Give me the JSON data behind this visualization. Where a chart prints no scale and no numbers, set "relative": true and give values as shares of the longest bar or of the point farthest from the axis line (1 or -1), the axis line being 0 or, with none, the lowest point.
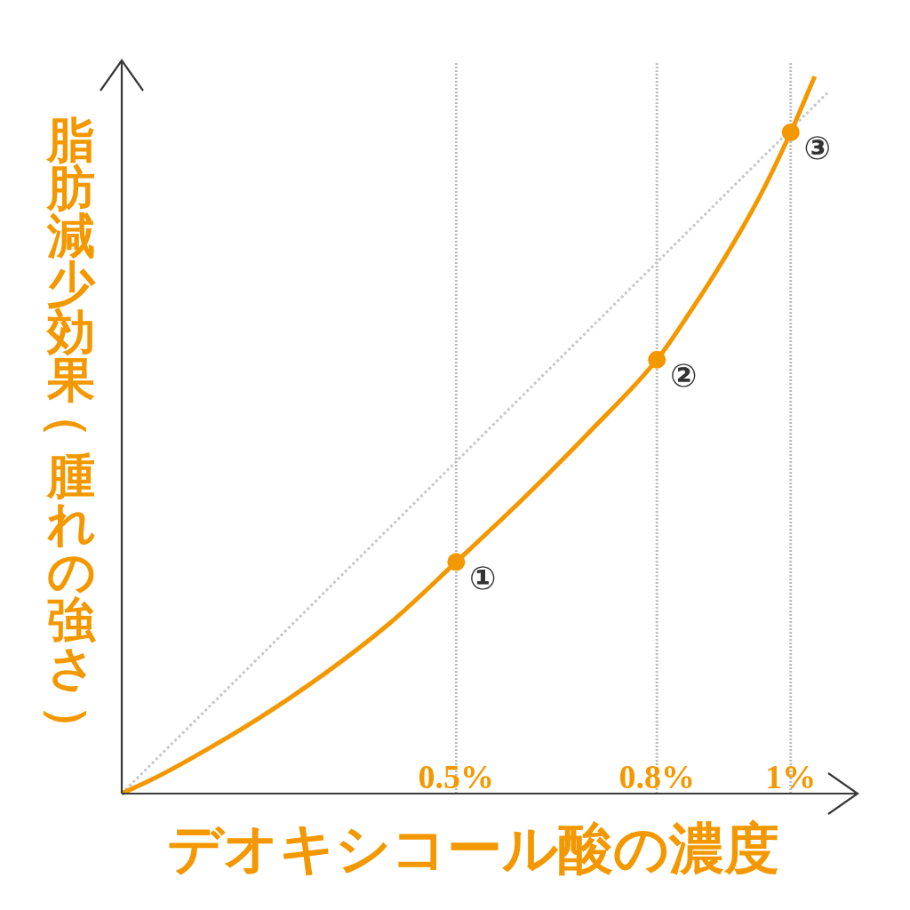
{
  "chart_data": {
    "type": "line",
    "xlabel": "デオキシコール酸の濃度",
    "ylabel": "脂肪減少効果（腫れの強さ）",
    "relative": true,
    "xlim": [
      0,
      1.1
    ],
    "xticks": [
      {
        "value": 0.5,
        "label": "0.5%"
      },
      {
        "value": 0.8,
        "label": "0.8%"
      },
      {
        "value": 1,
        "label": "1%"
      }
    ],
    "grid": "x",
    "series": [
      {
        "color": "#c8c8c8",
        "line_style": "dotted",
        "x": [
          0,
          1.056
        ],
        "values": [
          0,
          0.978
        ]
      },
      {
        "color": "#f39800",
        "line_style": "solid",
        "x": [
          0,
          0.05,
          0.1,
          0.2,
          0.3,
          0.4,
          0.5,
          0.6,
          0.7,
          0.8,
          0.85,
          0.9,
          0.95,
          1,
          1.036
        ],
        "values": [
          0,
          0.022,
          0.047,
          0.102,
          0.165,
          0.237,
          0.323,
          0.411,
          0.505,
          0.605,
          0.672,
          0.745,
          0.826,
          0.922,
          1
        ]
      },
      {
        "type": "scatter",
        "color": "#f39800",
        "marker": "circle",
        "x": [
          0.5,
          0.8,
          1
        ],
        "values": [
          0.323,
          0.605,
          0.922
        ]
      }
    ],
    "annotations": [
      {
        "text": "①",
        "x": 0.5,
        "y": 0.323
      },
      {
        "text": "②",
        "x": 0.8,
        "y": 0.605
      },
      {
        "text": "③",
        "x": 1,
        "y": 0.922
      }
    ]
  }
}
